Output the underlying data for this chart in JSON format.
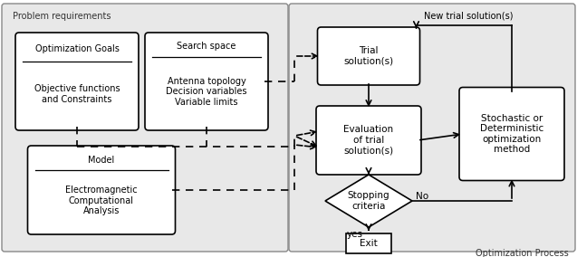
{
  "fig_width": 6.37,
  "fig_height": 2.84,
  "bg_color": "#ffffff",
  "light_gray": "#e0e0e0",
  "box_fill": "#ffffff",
  "box_edge": "#000000",
  "problem_req_label": "Problem requirements",
  "opt_process_label": "Optimization Process",
  "opt_goals_title": "Optimization Goals",
  "opt_goals_body": "Objective functions\nand Constraints",
  "search_space_title": "Search space",
  "search_space_body": "Antenna topology\nDecision variables\nVariable limits",
  "model_title": "Model",
  "model_body": "Electromagnetic\nComputational\nAnalysis",
  "trial_label": "Trial\nsolution(s)",
  "eval_label": "Evaluation\nof trial\nsolution(s)",
  "stoch_label": "Stochastic or\nDeterministic\noptimization\nmethod",
  "stop_label": "Stopping\ncriteria",
  "exit_label": "Exit",
  "new_trial_label": "New trial solution(s)",
  "no_label": "No",
  "yes_label": "yes"
}
